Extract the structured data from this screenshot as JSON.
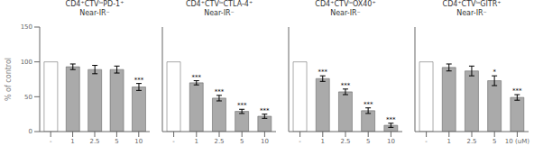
{
  "chart_data": [
    {
      "type": "bar",
      "title": "CD4⁺CTVˡᵒPD-1⁺\nNear-IR⁻",
      "ylabel": "% of control",
      "categories": [
        "-",
        "1",
        "2.5",
        "5",
        "10"
      ],
      "values": [
        100,
        93,
        89,
        89,
        64
      ],
      "errors": [
        0,
        4,
        6,
        5,
        5
      ],
      "annotations": [
        null,
        null,
        null,
        null,
        "***"
      ],
      "colors": [
        "#ffffff",
        "#aaaaaa",
        "#aaaaaa",
        "#aaaaaa",
        "#aaaaaa"
      ],
      "ylim": [
        0,
        150
      ],
      "yticks": [
        0,
        50,
        100,
        150
      ]
    },
    {
      "type": "bar",
      "title": "CD4⁺CTVˡᵒCTLA-4⁺\nNear-IR⁻",
      "categories": [
        "-",
        "1",
        "2.5",
        "5",
        "10"
      ],
      "values": [
        100,
        70,
        48,
        29,
        22
      ],
      "errors": [
        0,
        3,
        4,
        3,
        3
      ],
      "annotations": [
        null,
        "***",
        "***",
        "***",
        "***"
      ],
      "colors": [
        "#ffffff",
        "#aaaaaa",
        "#aaaaaa",
        "#aaaaaa",
        "#aaaaaa"
      ],
      "ylim": [
        0,
        150
      ],
      "yticks": [
        0,
        50,
        100,
        150
      ],
      "tick_labels": "x"
    },
    {
      "type": "bar",
      "title": "CD4⁺CTVˡᵒOX40⁺\nNear-IR⁻",
      "categories": [
        "-",
        "1",
        "2.5",
        "5",
        "10"
      ],
      "values": [
        100,
        76,
        57,
        30,
        9
      ],
      "errors": [
        0,
        4,
        4,
        4,
        3
      ],
      "annotations": [
        null,
        "***",
        "***",
        "***",
        "***"
      ],
      "colors": [
        "#ffffff",
        "#aaaaaa",
        "#aaaaaa",
        "#aaaaaa",
        "#aaaaaa"
      ],
      "ylim": [
        0,
        150
      ],
      "yticks": [
        0,
        50,
        100,
        150
      ],
      "tick_labels": "x"
    },
    {
      "type": "bar",
      "title": "CD4⁺CTVˡᵒGITR⁺\nNear-IR⁻",
      "categories": [
        "-",
        "1",
        "2.5",
        "5",
        "10 (uM)"
      ],
      "values": [
        100,
        92,
        87,
        73,
        49
      ],
      "errors": [
        0,
        5,
        7,
        7,
        4
      ],
      "annotations": [
        null,
        null,
        null,
        "*",
        "***"
      ],
      "colors": [
        "#ffffff",
        "#aaaaaa",
        "#aaaaaa",
        "#aaaaaa",
        "#aaaaaa"
      ],
      "ylim": [
        0,
        150
      ],
      "yticks": [
        0,
        50,
        100,
        150
      ],
      "tick_labels": "x"
    }
  ]
}
